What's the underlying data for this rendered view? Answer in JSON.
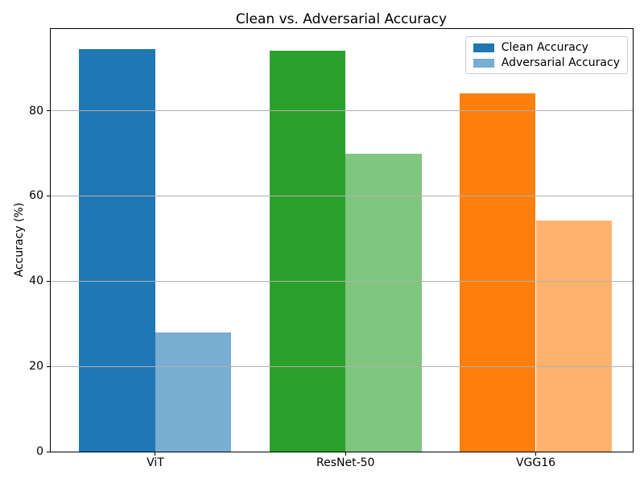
{
  "chart_data": {
    "type": "bar",
    "title": "Clean vs. Adversarial Accuracy",
    "xlabel": "",
    "ylabel": "Accuracy (%)",
    "categories": [
      "ViT",
      "ResNet-50",
      "VGG16"
    ],
    "series": [
      {
        "name": "Clean Accuracy",
        "values": [
          94.4,
          94.1,
          84.0
        ],
        "colors": [
          "#1f77b4",
          "#2ca02c",
          "#ff7f0e"
        ],
        "opacity": 1
      },
      {
        "name": "Adversarial Accuracy",
        "values": [
          28.0,
          70.0,
          54.3
        ],
        "colors": [
          "#1f77b4",
          "#2ca02c",
          "#ff7f0e"
        ],
        "opacity": 0.6
      }
    ],
    "yticks": [
      0,
      20,
      40,
      60,
      80
    ],
    "ylim": [
      0,
      99.2
    ],
    "xlim": [
      -0.55,
      2.51
    ],
    "bar_width_ratio": 0.4,
    "grid": true,
    "grid_color": "#b0b0b0",
    "grid_over_bars": true,
    "legend": {
      "position": "upper right",
      "entries": [
        {
          "label": "Clean Accuracy",
          "color": "#1f77b4",
          "opacity": 1
        },
        {
          "label": "Adversarial Accuracy",
          "color": "#1f77b4",
          "opacity": 0.6
        }
      ]
    }
  }
}
